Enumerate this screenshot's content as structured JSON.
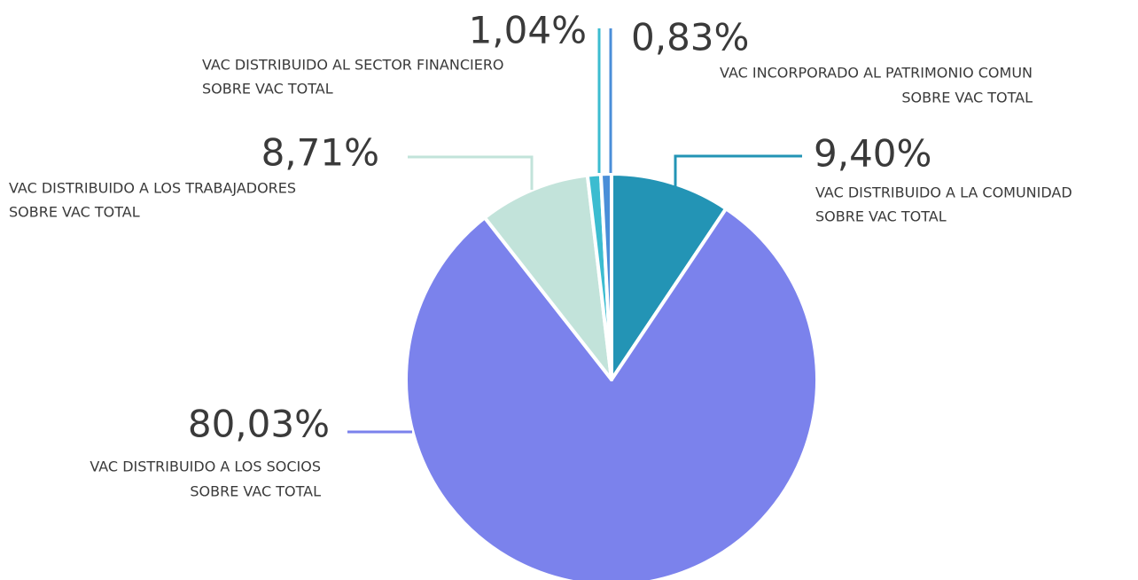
{
  "chart_data": {
    "type": "pie",
    "categories": [
      [
        "VAC DISTRIBUIDO A LA COMUNIDAD",
        "SOBRE VAC TOTAL"
      ],
      [
        "VAC DISTRIBUIDO A LOS SOCIOS",
        "SOBRE VAC TOTAL"
      ],
      [
        "VAC DISTRIBUIDO A LOS TRABAJADORES",
        "SOBRE VAC TOTAL"
      ],
      [
        "VAC DISTRIBUIDO AL SECTOR FINANCIERO",
        "SOBRE VAC TOTAL"
      ],
      [
        "VAC INCORPORADO AL PATRIMONIO COMUN",
        "SOBRE VAC TOTAL"
      ]
    ],
    "values": [
      9.4,
      80.03,
      8.71,
      1.04,
      0.83
    ],
    "value_labels": [
      "9,40%",
      "80,03%",
      "8,71%",
      "1,04%",
      "0,83%"
    ],
    "colors": [
      "#2394b5",
      "#7b82ec",
      "#c2e3da",
      "#3cbcd0",
      "#4a8ed8"
    ]
  }
}
